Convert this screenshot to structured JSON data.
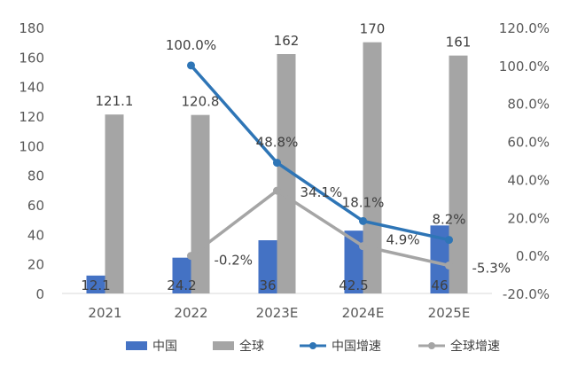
{
  "chart_data": {
    "type": "bar+line",
    "categories": [
      "2021",
      "2022",
      "2023E",
      "2024E",
      "2025E"
    ],
    "bar_series": [
      {
        "name": "中国",
        "values": [
          12.1,
          24.2,
          36,
          42.5,
          46
        ],
        "labels": [
          "12.1",
          "24.2",
          "36",
          "42.5",
          "46"
        ],
        "color": "#4472C4"
      },
      {
        "name": "全球",
        "values": [
          121.1,
          120.8,
          162,
          170,
          161
        ],
        "labels": [
          "121.1",
          "120.8",
          "162",
          "170",
          "161"
        ],
        "color": "#A5A5A5"
      }
    ],
    "line_series": [
      {
        "name": "中国增速",
        "values": [
          null,
          100.0,
          48.8,
          18.1,
          8.2
        ],
        "labels": [
          "",
          "100.0%",
          "48.8%",
          "18.1%",
          "8.2%"
        ],
        "color": "#2E75B6"
      },
      {
        "name": "全球增速",
        "values": [
          null,
          -0.2,
          34.1,
          4.9,
          -5.3
        ],
        "labels": [
          "",
          "-0.2%",
          "34.1%",
          "4.9%",
          "-5.3%"
        ],
        "color": "#A5A5A5"
      }
    ],
    "y_left": {
      "min": 0,
      "max": 180,
      "ticks": [
        "0",
        "20",
        "40",
        "60",
        "80",
        "100",
        "120",
        "140",
        "160",
        "180"
      ]
    },
    "y_right": {
      "min": -20,
      "max": 120,
      "ticks": [
        "-20.0%",
        "0.0%",
        "20.0%",
        "40.0%",
        "60.0%",
        "80.0%",
        "100.0%",
        "120.0%"
      ]
    },
    "title": "",
    "grid": false,
    "legend_position": "bottom"
  }
}
